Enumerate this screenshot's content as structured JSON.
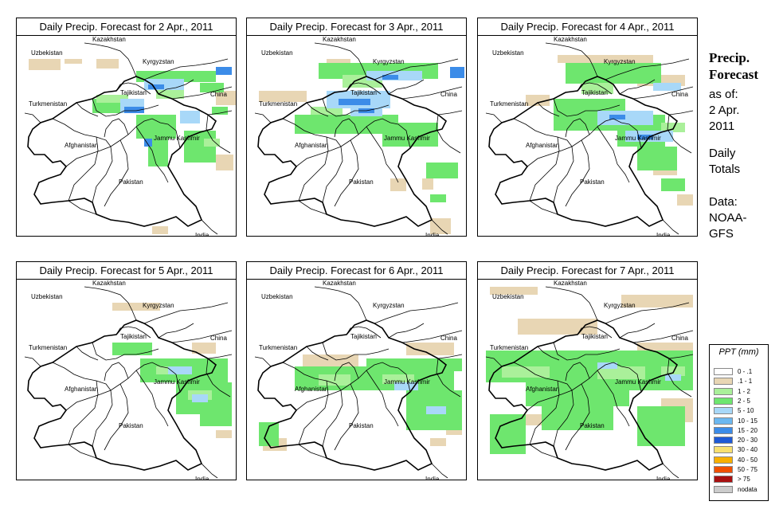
{
  "title_prefix": "Daily Precip. Forecast for",
  "panels": [
    {
      "title": "Daily Precip. Forecast for  2 Apr., 2011",
      "date": "2 Apr., 2011",
      "precip": [
        {
          "cat": "tan",
          "blobs": [
            [
              15,
              30,
              40,
              14
            ],
            [
              60,
              30,
              22,
              6
            ],
            [
              250,
              70,
              26,
              18
            ],
            [
              250,
              150,
              22,
              20
            ],
            [
              170,
              240,
              20,
              10
            ],
            [
              100,
              30,
              28,
              12
            ],
            [
              200,
              45,
              30,
              14
            ]
          ]
        },
        {
          "cat": "green",
          "blobs": [
            [
              150,
              45,
              100,
              14
            ],
            [
              95,
              80,
              60,
              18
            ],
            [
              150,
              100,
              50,
              30
            ],
            [
              165,
              125,
              25,
              40
            ],
            [
              210,
              120,
              40,
              40
            ],
            [
              230,
              60,
              30,
              12
            ],
            [
              245,
              90,
              20,
              10
            ]
          ]
        },
        {
          "cat": "lgreen",
          "blobs": [
            [
              175,
              60,
              35,
              20
            ],
            [
              100,
              75,
              40,
              10
            ],
            [
              235,
              130,
              20,
              10
            ]
          ]
        },
        {
          "cat": "lblue",
          "blobs": [
            [
              130,
              80,
              30,
              18
            ],
            [
              160,
              55,
              50,
              14
            ],
            [
              205,
              95,
              25,
              16
            ]
          ]
        },
        {
          "cat": "mblue",
          "blobs": [
            [
              135,
              90,
              25,
              8
            ],
            [
              165,
              62,
              20,
              6
            ],
            [
              250,
              40,
              20,
              10
            ],
            [
              160,
              130,
              10,
              10
            ]
          ]
        }
      ]
    },
    {
      "title": "Daily Precip. Forecast for  3 Apr., 2011",
      "date": "3 Apr., 2011",
      "precip": [
        {
          "cat": "tan",
          "blobs": [
            [
              15,
              70,
              60,
              14
            ],
            [
              230,
              230,
              26,
              20
            ],
            [
              180,
              180,
              20,
              16
            ],
            [
              100,
              30,
              30,
              12
            ],
            [
              220,
              180,
              14,
              14
            ]
          ]
        },
        {
          "cat": "green",
          "blobs": [
            [
              90,
              35,
              150,
              20
            ],
            [
              60,
              100,
              130,
              24
            ],
            [
              170,
              110,
              70,
              30
            ],
            [
              225,
              160,
              40,
              20
            ],
            [
              230,
              200,
              20,
              10
            ]
          ]
        },
        {
          "cat": "lgreen",
          "blobs": [
            [
              120,
              50,
              50,
              16
            ],
            [
              80,
              90,
              40,
              10
            ]
          ]
        },
        {
          "cat": "lblue",
          "blobs": [
            [
              100,
              70,
              80,
              22
            ],
            [
              150,
              45,
              70,
              12
            ],
            [
              130,
              90,
              40,
              12
            ]
          ]
        },
        {
          "cat": "mblue",
          "blobs": [
            [
              115,
              80,
              40,
              8
            ],
            [
              170,
              50,
              20,
              6
            ],
            [
              255,
              40,
              18,
              14
            ],
            [
              140,
              92,
              20,
              6
            ]
          ]
        }
      ]
    },
    {
      "title": "Daily Precip. Forecast for  4 Apr., 2011",
      "date": "4 Apr., 2011",
      "precip": [
        {
          "cat": "tan",
          "blobs": [
            [
              100,
              25,
              120,
              10
            ],
            [
              60,
              75,
              30,
              14
            ],
            [
              200,
              50,
              60,
              14
            ],
            [
              220,
              160,
              30,
              16
            ],
            [
              250,
              200,
              20,
              14
            ]
          ]
        },
        {
          "cat": "green",
          "blobs": [
            [
              110,
              35,
              120,
              26
            ],
            [
              95,
              80,
              90,
              40
            ],
            [
              175,
              100,
              60,
              40
            ],
            [
              200,
              140,
              50,
              30
            ],
            [
              230,
              180,
              30,
              16
            ]
          ]
        },
        {
          "cat": "lgreen",
          "blobs": [
            [
              130,
              60,
              40,
              14
            ],
            [
              230,
              110,
              30,
              12
            ]
          ]
        },
        {
          "cat": "lblue",
          "blobs": [
            [
              150,
              95,
              70,
              18
            ],
            [
              185,
              120,
              60,
              14
            ],
            [
              220,
              60,
              35,
              10
            ]
          ]
        },
        {
          "cat": "mblue",
          "blobs": [
            [
              165,
              100,
              20,
              6
            ],
            [
              200,
              125,
              20,
              6
            ]
          ]
        }
      ]
    },
    {
      "title": "Daily Precip. Forecast for  5 Apr., 2011",
      "date": "5 Apr., 2011",
      "precip": [
        {
          "cat": "tan",
          "blobs": [
            [
              120,
              30,
              60,
              10
            ],
            [
              220,
              80,
              30,
              14
            ],
            [
              240,
              160,
              30,
              16
            ],
            [
              250,
              190,
              20,
              10
            ]
          ]
        },
        {
          "cat": "green",
          "blobs": [
            [
              120,
              80,
              50,
              16
            ],
            [
              155,
              100,
              110,
              30
            ],
            [
              200,
              130,
              70,
              40
            ],
            [
              230,
              165,
              40,
              20
            ]
          ]
        },
        {
          "cat": "lgreen",
          "blobs": [
            [
              175,
              110,
              30,
              10
            ],
            [
              215,
              140,
              30,
              12
            ]
          ]
        },
        {
          "cat": "lblue",
          "blobs": [
            [
              190,
              110,
              30,
              10
            ],
            [
              220,
              145,
              20,
              10
            ]
          ]
        }
      ]
    },
    {
      "title": "Daily Precip. Forecast for  6 Apr., 2011",
      "date": "6 Apr., 2011",
      "precip": [
        {
          "cat": "tan",
          "blobs": [
            [
              70,
              95,
              70,
              16
            ],
            [
              20,
              200,
              30,
              16
            ],
            [
              200,
              80,
              60,
              16
            ],
            [
              250,
              180,
              20,
              16
            ],
            [
              230,
              200,
              20,
              10
            ]
          ]
        },
        {
          "cat": "green",
          "blobs": [
            [
              60,
              110,
              100,
              30
            ],
            [
              150,
              100,
              110,
              40
            ],
            [
              200,
              140,
              70,
              50
            ],
            [
              15,
              180,
              25,
              30
            ],
            [
              240,
              100,
              30,
              16
            ]
          ]
        },
        {
          "cat": "lgreen",
          "blobs": [
            [
              90,
              120,
              40,
              14
            ],
            [
              170,
              120,
              40,
              12
            ]
          ]
        },
        {
          "cat": "lblue",
          "blobs": [
            [
              185,
              130,
              30,
              10
            ],
            [
              225,
              160,
              25,
              10
            ]
          ]
        }
      ]
    },
    {
      "title": "Daily Precip. Forecast for  7 Apr., 2011",
      "date": "7 Apr., 2011",
      "precip": [
        {
          "cat": "tan",
          "blobs": [
            [
              15,
              10,
              60,
              10
            ],
            [
              50,
              50,
              100,
              20
            ],
            [
              180,
              20,
              90,
              16
            ],
            [
              200,
              80,
              70,
              20
            ],
            [
              230,
              150,
              40,
              30
            ],
            [
              30,
              170,
              60,
              14
            ]
          ]
        },
        {
          "cat": "green",
          "blobs": [
            [
              10,
              90,
              130,
              40
            ],
            [
              60,
              120,
              130,
              40
            ],
            [
              140,
              90,
              130,
              50
            ],
            [
              15,
              170,
              45,
              50
            ],
            [
              200,
              160,
              60,
              50
            ],
            [
              80,
              160,
              90,
              30
            ]
          ]
        },
        {
          "cat": "lgreen",
          "blobs": [
            [
              30,
              110,
              60,
              14
            ],
            [
              150,
              110,
              60,
              16
            ],
            [
              230,
              110,
              30,
              12
            ]
          ]
        },
        {
          "cat": "lblue",
          "blobs": [
            [
              150,
              105,
              25,
              8
            ],
            [
              235,
              120,
              20,
              8
            ]
          ]
        }
      ]
    }
  ],
  "map_labels": {
    "kazakhstan": "Kazakhstan",
    "uzbekistan": "Uzbekistan",
    "kyrgyzstan": "Kyrgyzstan",
    "tajikistan": "Tajikistan",
    "turkmenistan": "Turkmenistan",
    "china": "China",
    "afghanistan": "Afghanistan",
    "jammu_kashmir": "Jammu Kashmir",
    "pakistan": "Pakistan",
    "india": "India"
  },
  "side_panel": {
    "title_line1": "Precip.",
    "title_line2": "Forecast",
    "asof_line1": "as of:",
    "asof_line2": "2 Apr.",
    "asof_line3": "2011",
    "daily_line1": "Daily",
    "daily_line2": "Totals",
    "data_line1": "Data:",
    "data_line2": "NOAA-",
    "data_line3": "GFS"
  },
  "legend": {
    "title": "PPT (mm)",
    "items": [
      {
        "label": "0 - .1",
        "color": "#ffffff"
      },
      {
        "label": ".1 - 1",
        "color": "#e8d6b4"
      },
      {
        "label": "1 - 2",
        "color": "#aaf09a"
      },
      {
        "label": "2 - 5",
        "color": "#6ee66e"
      },
      {
        "label": "5 - 10",
        "color": "#a8d8f8"
      },
      {
        "label": "10 - 15",
        "color": "#6cb8f0"
      },
      {
        "label": "15 - 20",
        "color": "#3c8ce8"
      },
      {
        "label": "20 - 30",
        "color": "#1e5ad6"
      },
      {
        "label": "30 - 40",
        "color": "#f8e070"
      },
      {
        "label": "40 - 50",
        "color": "#f8b000"
      },
      {
        "label": "50 - 75",
        "color": "#f05000"
      },
      {
        "label": "> 75",
        "color": "#a81010"
      },
      {
        "label": "nodata",
        "color": "#cccccc"
      }
    ]
  },
  "colors": {
    "tan": "#e8d6b4",
    "lgreen": "#aaf09a",
    "green": "#6ee66e",
    "lblue": "#a8d8f8",
    "mblue": "#3c8ce8"
  }
}
